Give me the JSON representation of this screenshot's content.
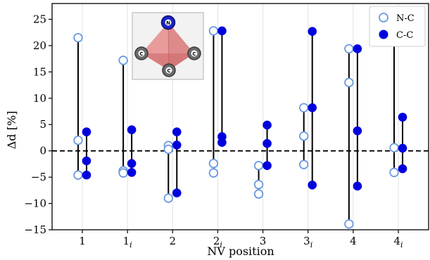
{
  "chart_data": {
    "type": "scatter",
    "xlabel": "NV position",
    "ylabel": "Δd [%]",
    "ylim": [
      -15,
      28
    ],
    "yticks": [
      -15,
      -10,
      -5,
      0,
      5,
      10,
      15,
      20,
      25
    ],
    "categories": [
      {
        "base": "1",
        "sub": ""
      },
      {
        "base": "1",
        "sub": "i"
      },
      {
        "base": "2",
        "sub": ""
      },
      {
        "base": "2",
        "sub": "i"
      },
      {
        "base": "3",
        "sub": ""
      },
      {
        "base": "3",
        "sub": "i"
      },
      {
        "base": "4",
        "sub": ""
      },
      {
        "base": "4",
        "sub": "i"
      }
    ],
    "grid": "vertical",
    "zero_line": "dashed",
    "legend_position": "top-right",
    "series": [
      {
        "name": "N-C",
        "marker": "open-circle",
        "color": "#6a9ae0",
        "values": [
          [
            21.5,
            2.0,
            -4.6
          ],
          [
            17.2,
            -3.8,
            -4.2
          ],
          [
            1.0,
            0.3,
            -9.0
          ],
          [
            22.8,
            -2.4,
            -4.2
          ],
          [
            -2.8,
            -6.4,
            -8.2
          ],
          [
            8.2,
            2.8,
            -2.6
          ],
          [
            19.4,
            13.0,
            -13.9
          ],
          [
            20.8,
            0.6,
            -4.1
          ]
        ]
      },
      {
        "name": "C-C",
        "marker": "filled-circle",
        "color": "#0000dd",
        "values": [
          [
            3.6,
            -1.9,
            -4.6
          ],
          [
            4.0,
            -2.4,
            -4.1
          ],
          [
            3.6,
            1.1,
            -8.0
          ],
          [
            22.8,
            2.7,
            1.6
          ],
          [
            4.9,
            1.4,
            -2.8
          ],
          [
            22.7,
            8.2,
            -6.5
          ],
          [
            19.4,
            3.8,
            -6.7
          ],
          [
            6.4,
            0.5,
            -3.4
          ]
        ]
      }
    ]
  },
  "inset": {
    "atom_top": "N",
    "atom_left": "C",
    "atom_right": "C",
    "atom_bottom": "C"
  }
}
